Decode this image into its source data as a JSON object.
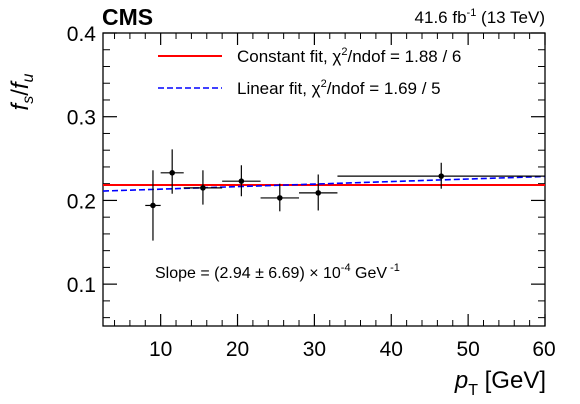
{
  "header": {
    "experiment": "CMS",
    "lumi_value": "41.6 fb",
    "lumi_exp": "-1",
    "energy": " (13 TeV)"
  },
  "chart_data": {
    "type": "scatter",
    "xlabel": "p",
    "xlabel_sub": "T",
    "xlabel_unit": " [GeV]",
    "ylabel_num": "f",
    "ylabel_num_sub": "s",
    "ylabel_den": "f",
    "ylabel_den_sub": "u",
    "xlim": [
      2.5,
      60
    ],
    "ylim": [
      0.05,
      0.4
    ],
    "xticks": [
      10,
      20,
      30,
      40,
      50,
      60
    ],
    "yticks": [
      0.1,
      0.2,
      0.3,
      0.4
    ],
    "xtick_labels": [
      "10",
      "20",
      "30",
      "40",
      "50",
      "60"
    ],
    "ytick_labels": [
      "0.1",
      "0.2",
      "0.3",
      "0.4"
    ],
    "grid": false,
    "legend_position": "top-right",
    "points": [
      {
        "x": 9.0,
        "y": 0.194,
        "xerr_lo": 1.0,
        "xerr_hi": 1.0,
        "yerr_lo": 0.042,
        "yerr_hi": 0.042
      },
      {
        "x": 11.5,
        "y": 0.233,
        "xerr_lo": 1.5,
        "xerr_hi": 1.5,
        "yerr_lo": 0.025,
        "yerr_hi": 0.028
      },
      {
        "x": 15.5,
        "y": 0.215,
        "xerr_lo": 2.5,
        "xerr_hi": 2.5,
        "yerr_lo": 0.02,
        "yerr_hi": 0.021
      },
      {
        "x": 20.5,
        "y": 0.223,
        "xerr_lo": 2.5,
        "xerr_hi": 2.5,
        "yerr_lo": 0.018,
        "yerr_hi": 0.019
      },
      {
        "x": 25.5,
        "y": 0.203,
        "xerr_lo": 2.5,
        "xerr_hi": 2.5,
        "yerr_lo": 0.016,
        "yerr_hi": 0.017
      },
      {
        "x": 30.5,
        "y": 0.209,
        "xerr_lo": 2.5,
        "xerr_hi": 2.5,
        "yerr_lo": 0.021,
        "yerr_hi": 0.022
      },
      {
        "x": 46.5,
        "y": 0.229,
        "xerr_lo": 13.5,
        "xerr_hi": 13.5,
        "yerr_lo": 0.015,
        "yerr_hi": 0.016
      }
    ],
    "fits": [
      {
        "name": "Constant fit, χ²/ndof = 1.88 / 6",
        "type": "constant",
        "y": 0.2185,
        "color": "#ff0000",
        "style": "solid"
      },
      {
        "name": "Linear fit, χ²/ndof = 1.69 / 5",
        "type": "linear",
        "x_range": [
          2.5,
          60
        ],
        "y_range": [
          0.2112,
          0.2286
        ],
        "color": "#0000ff",
        "style": "dashed"
      }
    ],
    "annotation": {
      "text_main": "Slope =  (2.94 ± 6.69) × 10",
      "text_exp": "-4",
      "text_unit": " GeV",
      "text_unit_exp": " -1"
    }
  },
  "legend": {
    "constant_label": "Constant fit, χ",
    "constant_sup": "2",
    "constant_rest": "/ndof = 1.88 / 6",
    "linear_label": "Linear fit, χ",
    "linear_sup": "2",
    "linear_rest": "/ndof = 1.69 / 5"
  }
}
